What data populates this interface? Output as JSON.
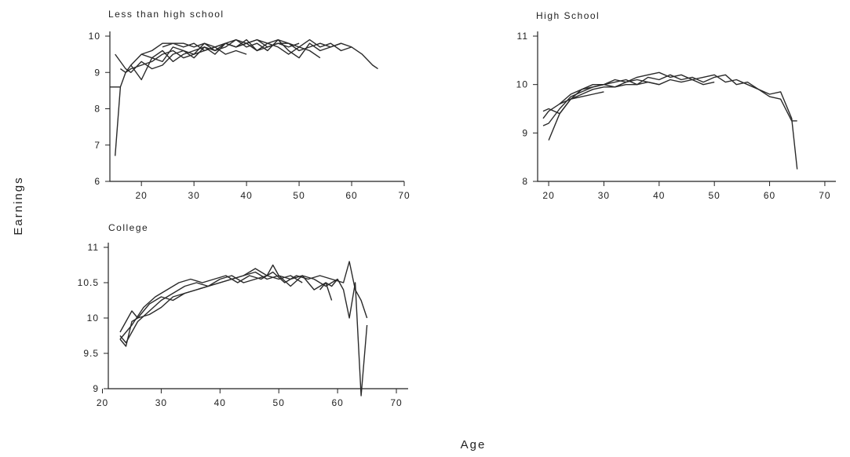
{
  "figure": {
    "ylabel": "Earnings",
    "xlabel": "Age"
  },
  "chart_data": [
    {
      "type": "line",
      "title": "Less than high school",
      "xlim": [
        14,
        70
      ],
      "ylim": [
        6,
        10
      ],
      "xticks": [
        20,
        30,
        40,
        50,
        60,
        70
      ],
      "yticks": [
        6,
        7,
        8,
        9,
        10
      ],
      "series": [
        {
          "x": [
            15,
            16,
            17,
            18,
            20,
            22,
            24,
            26,
            28,
            30,
            32,
            34,
            36,
            38,
            40
          ],
          "y": [
            6.7,
            8.6,
            9.0,
            9.1,
            9.2,
            9.3,
            9.5,
            9.6,
            9.4,
            9.5,
            9.6,
            9.7,
            9.5,
            9.6,
            9.5
          ]
        },
        {
          "x": [
            15,
            16,
            17,
            18,
            20,
            22,
            24,
            26,
            28,
            30,
            32,
            34,
            36,
            38,
            40,
            42,
            44,
            46,
            48,
            50
          ],
          "y": [
            9.5,
            9.3,
            9.1,
            9.0,
            9.3,
            9.1,
            9.2,
            9.5,
            9.6,
            9.4,
            9.7,
            9.6,
            9.8,
            9.7,
            9.8,
            9.6,
            9.7,
            9.8,
            9.7,
            9.8
          ]
        },
        {
          "x": [
            16,
            17,
            18,
            20,
            22,
            24,
            26,
            28,
            30,
            32,
            34,
            36,
            38,
            40,
            42,
            44,
            46,
            48,
            50,
            52,
            54
          ],
          "y": [
            9.1,
            9.0,
            9.2,
            9.5,
            9.4,
            9.6,
            9.3,
            9.5,
            9.6,
            9.7,
            9.5,
            9.8,
            9.7,
            9.9,
            9.6,
            9.8,
            9.7,
            9.5,
            9.7,
            9.6,
            9.4
          ]
        },
        {
          "x": [
            18,
            20,
            22,
            24,
            26,
            28,
            30,
            32,
            34,
            36,
            38,
            40,
            42,
            44,
            46,
            48,
            50,
            52,
            54,
            56,
            58
          ],
          "y": [
            9.2,
            8.8,
            9.4,
            9.3,
            9.7,
            9.6,
            9.5,
            9.8,
            9.6,
            9.7,
            9.9,
            9.7,
            9.8,
            9.6,
            9.9,
            9.6,
            9.4,
            9.8,
            9.6,
            9.7,
            9.8
          ]
        },
        {
          "x": [
            20,
            22,
            24,
            26,
            28,
            30,
            32,
            34,
            36,
            38,
            40,
            42,
            44,
            46,
            48,
            50,
            52,
            54,
            56,
            58,
            60
          ],
          "y": [
            9.5,
            9.6,
            9.8,
            9.8,
            9.7,
            9.8,
            9.6,
            9.7,
            9.8,
            9.9,
            9.8,
            9.9,
            9.7,
            9.8,
            9.8,
            9.6,
            9.7,
            9.8,
            9.7,
            9.8,
            9.7
          ]
        },
        {
          "x": [
            24,
            26,
            28,
            30,
            32,
            34,
            36,
            38,
            40,
            42,
            44,
            46,
            48,
            50,
            52,
            54,
            56,
            58,
            60,
            62,
            64,
            65
          ],
          "y": [
            9.7,
            9.8,
            9.8,
            9.7,
            9.8,
            9.7,
            9.8,
            9.7,
            9.8,
            9.9,
            9.8,
            9.9,
            9.8,
            9.7,
            9.9,
            9.7,
            9.8,
            9.6,
            9.7,
            9.5,
            9.2,
            9.1
          ]
        }
      ],
      "flat_segment": {
        "x": [
          14,
          16
        ],
        "y": [
          8.6,
          8.6
        ]
      }
    },
    {
      "type": "line",
      "title": "High School",
      "xlim": [
        18,
        72
      ],
      "ylim": [
        8,
        11
      ],
      "xticks": [
        20,
        30,
        40,
        50,
        60,
        70
      ],
      "yticks": [
        8,
        9,
        10,
        11
      ],
      "series": [
        {
          "x": [
            19,
            20,
            22,
            24,
            26,
            28,
            30
          ],
          "y": [
            9.3,
            9.45,
            9.6,
            9.7,
            9.75,
            9.8,
            9.85
          ]
        },
        {
          "x": [
            19,
            20,
            22,
            24,
            26,
            28,
            30,
            32,
            34,
            36,
            38,
            40
          ],
          "y": [
            9.45,
            9.5,
            9.4,
            9.7,
            9.8,
            9.9,
            9.95,
            9.95,
            10.0,
            10.0,
            10.05,
            10.0
          ]
        },
        {
          "x": [
            19,
            20,
            22,
            24,
            26,
            28,
            30,
            32,
            34,
            36,
            38,
            40,
            42,
            44,
            46,
            48,
            50
          ],
          "y": [
            9.15,
            9.2,
            9.5,
            9.75,
            9.85,
            9.95,
            10.0,
            9.95,
            10.05,
            10.1,
            10.05,
            10.0,
            10.1,
            10.05,
            10.1,
            10.0,
            10.05
          ]
        },
        {
          "x": [
            20,
            22,
            24,
            26,
            28,
            30,
            32,
            34,
            36,
            38,
            40,
            42,
            44,
            46,
            48,
            50,
            52,
            54,
            56,
            58,
            60,
            62,
            64,
            65
          ],
          "y": [
            8.85,
            9.4,
            9.7,
            9.9,
            9.95,
            10.0,
            10.05,
            10.1,
            10.0,
            10.15,
            10.1,
            10.2,
            10.1,
            10.15,
            10.05,
            10.15,
            10.2,
            10.0,
            10.05,
            9.9,
            9.75,
            9.7,
            9.25,
            9.25
          ]
        },
        {
          "x": [
            22,
            24,
            26,
            28,
            30,
            32,
            34,
            36,
            38,
            40,
            42,
            44,
            46,
            48,
            50,
            52,
            54,
            56,
            58,
            60,
            62,
            64,
            65
          ],
          "y": [
            9.6,
            9.8,
            9.9,
            10.0,
            10.0,
            10.1,
            10.05,
            10.15,
            10.2,
            10.25,
            10.15,
            10.2,
            10.1,
            10.15,
            10.2,
            10.05,
            10.1,
            10.0,
            9.9,
            9.8,
            9.85,
            9.3,
            8.25
          ]
        }
      ]
    },
    {
      "type": "line",
      "title": "College",
      "xlim": [
        21,
        72
      ],
      "ylim": [
        9,
        11
      ],
      "xticks": [
        20,
        30,
        40,
        50,
        60,
        70
      ],
      "yticks": [
        9,
        9.5,
        10,
        10.5,
        11
      ],
      "series": [
        {
          "x": [
            23,
            24,
            26,
            28,
            30,
            32,
            34,
            36,
            38,
            40,
            42,
            44,
            46,
            48,
            50,
            52,
            54
          ],
          "y": [
            9.75,
            9.65,
            9.95,
            10.1,
            10.25,
            10.35,
            10.45,
            10.5,
            10.45,
            10.55,
            10.6,
            10.5,
            10.55,
            10.6,
            10.55,
            10.6,
            10.5
          ]
        },
        {
          "x": [
            23,
            24,
            25,
            26,
            28,
            30,
            32,
            34,
            36,
            38,
            40,
            42,
            44,
            46,
            48,
            50,
            52,
            54,
            56,
            58,
            59
          ],
          "y": [
            9.7,
            9.6,
            9.95,
            10.0,
            10.05,
            10.15,
            10.3,
            10.35,
            10.4,
            10.45,
            10.5,
            10.55,
            10.6,
            10.65,
            10.55,
            10.6,
            10.45,
            10.6,
            10.4,
            10.5,
            10.25
          ]
        },
        {
          "x": [
            23,
            24,
            25,
            26,
            28,
            30,
            32,
            34,
            36,
            38,
            40,
            42,
            44,
            46,
            48,
            49,
            50,
            52,
            54,
            56,
            58,
            60
          ],
          "y": [
            9.8,
            9.95,
            10.1,
            10.0,
            10.2,
            10.3,
            10.25,
            10.35,
            10.4,
            10.45,
            10.5,
            10.55,
            10.6,
            10.7,
            10.6,
            10.75,
            10.6,
            10.55,
            10.6,
            10.55,
            10.45,
            10.55
          ]
        },
        {
          "x": [
            23,
            25,
            27,
            29,
            31,
            33,
            35,
            37,
            39,
            41,
            43,
            45,
            47,
            49,
            51,
            53,
            55,
            57,
            59,
            61,
            62,
            63,
            64,
            65
          ],
          "y": [
            9.7,
            9.9,
            10.15,
            10.3,
            10.4,
            10.5,
            10.55,
            10.5,
            10.55,
            10.6,
            10.5,
            10.6,
            10.55,
            10.65,
            10.5,
            10.6,
            10.55,
            10.6,
            10.55,
            10.5,
            10.8,
            10.4,
            10.25,
            10.0
          ]
        },
        {
          "x": [
            57,
            58,
            59,
            60,
            61,
            62,
            63,
            64,
            65
          ],
          "y": [
            10.4,
            10.5,
            10.45,
            10.55,
            10.4,
            10.0,
            10.5,
            8.9,
            9.9
          ]
        }
      ]
    }
  ]
}
